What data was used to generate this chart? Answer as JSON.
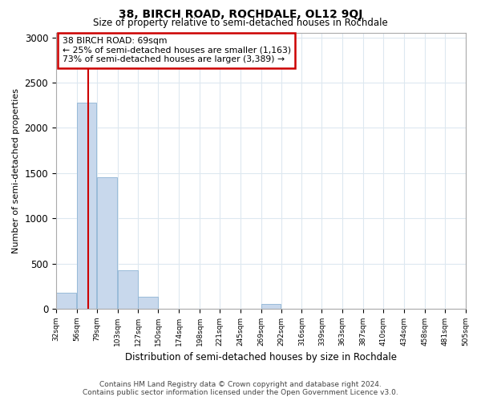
{
  "title": "38, BIRCH ROAD, ROCHDALE, OL12 9QJ",
  "subtitle": "Size of property relative to semi-detached houses in Rochdale",
  "xlabel": "Distribution of semi-detached houses by size in Rochdale",
  "ylabel": "Number of semi-detached properties",
  "property_size": 69,
  "annotation_line1": "38 BIRCH ROAD: 69sqm",
  "annotation_line2": "← 25% of semi-detached houses are smaller (1,163)",
  "annotation_line3": "73% of semi-detached houses are larger (3,389) →",
  "bins": [
    32,
    56,
    79,
    103,
    127,
    150,
    174,
    198,
    221,
    245,
    269,
    292,
    316,
    339,
    363,
    387,
    410,
    434,
    458,
    481,
    505
  ],
  "counts": [
    175,
    2280,
    1450,
    430,
    130,
    0,
    0,
    0,
    0,
    0,
    55,
    0,
    0,
    0,
    0,
    0,
    0,
    0,
    0,
    0
  ],
  "bar_color": "#c8d8ec",
  "bar_edge_color": "#8eb4d4",
  "grid_color": "#dde8f0",
  "annotation_box_facecolor": "#ffffff",
  "annotation_box_edge": "#cc0000",
  "vline_color": "#cc0000",
  "footer": "Contains HM Land Registry data © Crown copyright and database right 2024.\nContains public sector information licensed under the Open Government Licence v3.0.",
  "ylim": [
    0,
    3050
  ],
  "yticks": [
    0,
    500,
    1000,
    1500,
    2000,
    2500,
    3000
  ],
  "background_color": "#ffffff",
  "plot_bg_color": "#ffffff"
}
